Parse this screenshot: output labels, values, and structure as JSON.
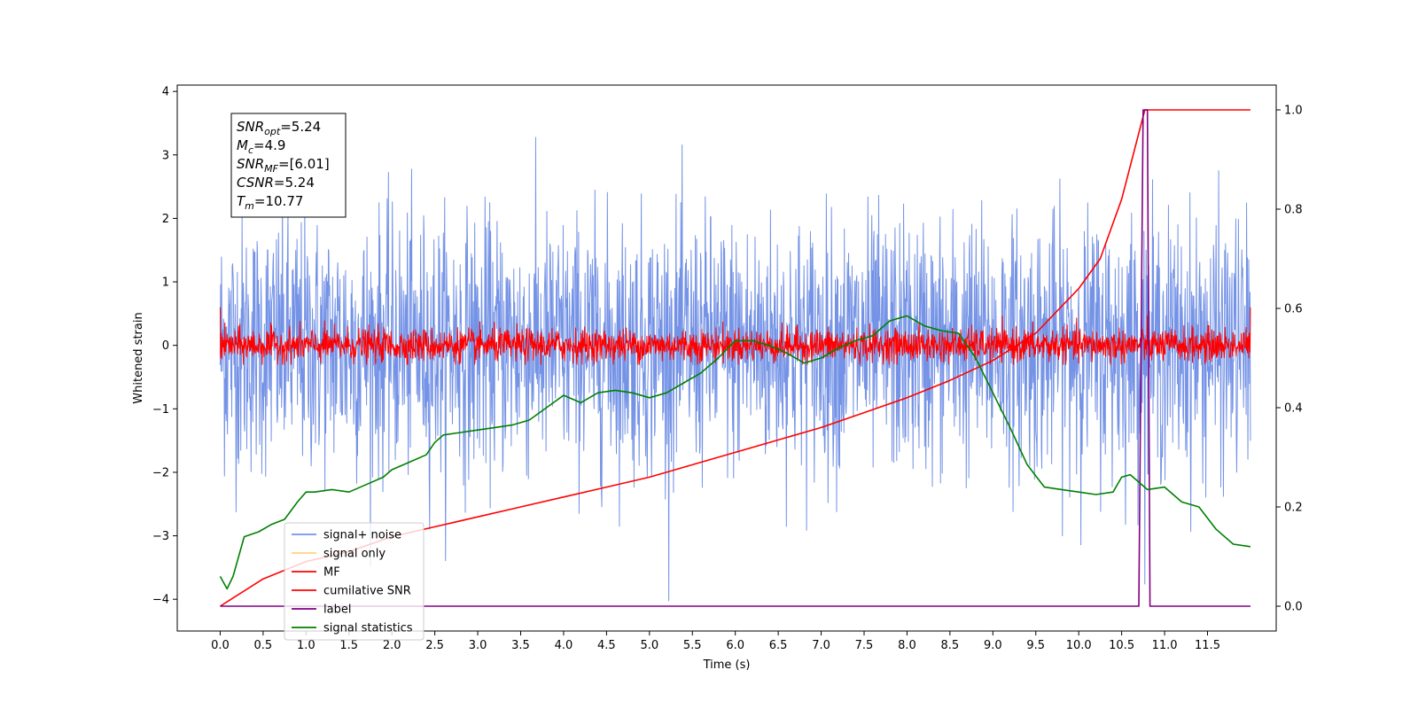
{
  "chart_data": {
    "type": "line",
    "xlabel": "Time (s)",
    "ylabel_left": "Whitened strain",
    "xlim": [
      -0.5,
      12.3
    ],
    "ylim_left": [
      -4.5,
      4.1
    ],
    "ylim_right": [
      -0.05,
      1.05
    ],
    "x_ticks": [
      "0.0",
      "0.5",
      "1.0",
      "1.5",
      "2.0",
      "2.5",
      "3.0",
      "3.5",
      "4.0",
      "4.5",
      "5.0",
      "5.5",
      "6.0",
      "6.5",
      "7.0",
      "7.5",
      "8.0",
      "8.5",
      "9.0",
      "9.5",
      "10.0",
      "10.5",
      "11.0",
      "11.5"
    ],
    "y_ticks_left": [
      "4",
      "3",
      "2",
      "1",
      "0",
      "−1",
      "−2",
      "−3",
      "−4"
    ],
    "y_ticks_right": [
      "1.0",
      "0.8",
      "0.6",
      "0.4",
      "0.2",
      "0.0"
    ],
    "legend": {
      "placement": "lower-left",
      "entries": [
        {
          "label": "signal+ noise",
          "color": "#7593e6"
        },
        {
          "label": "signal only",
          "color": "#ffd27f"
        },
        {
          "label": "MF",
          "color": "#ff0000"
        },
        {
          "label": "cumilative SNR",
          "color": "#ff0000"
        },
        {
          "label": "label",
          "color": "#800080"
        },
        {
          "label": "signal statistics",
          "color": "#008000"
        }
      ]
    },
    "stats_box": [
      {
        "base": "SNR",
        "sub": "opt",
        "value": "=5.24"
      },
      {
        "base": "M",
        "sub": "c",
        "value": "=4.9"
      },
      {
        "base": "SNR",
        "sub": "MF",
        "value": "=[6.01]"
      },
      {
        "base": "CSNR",
        "sub": "",
        "value": "=5.24"
      },
      {
        "base": "T",
        "sub": "m",
        "value": "=10.77"
      }
    ],
    "series": [
      {
        "name": "signal+ noise",
        "axis": "left",
        "color": "#7593e6",
        "kind": "noise",
        "x_range": [
          0.0,
          12.0
        ],
        "std": 1.0,
        "range_observed": [
          -4.15,
          3.7
        ]
      },
      {
        "name": "MF",
        "axis": "left",
        "color": "#ff0000",
        "kind": "noise",
        "x_range": [
          0.0,
          12.0
        ],
        "std": 0.13,
        "range_observed": [
          -0.3,
          0.6
        ],
        "edge_values": [
          1.0,
          1.0
        ]
      },
      {
        "name": "cumilative SNR",
        "axis": "right",
        "color": "#ff0000",
        "x": [
          0.0,
          0.5,
          1.0,
          1.5,
          2.0,
          2.5,
          3.0,
          3.5,
          4.0,
          4.5,
          5.0,
          5.5,
          6.0,
          6.5,
          7.0,
          7.5,
          8.0,
          8.5,
          9.0,
          9.5,
          10.0,
          10.25,
          10.5,
          10.77,
          11.0,
          11.5,
          12.0
        ],
        "y": [
          0.0,
          0.055,
          0.09,
          0.11,
          0.14,
          0.16,
          0.18,
          0.2,
          0.22,
          0.24,
          0.26,
          0.285,
          0.31,
          0.335,
          0.36,
          0.39,
          0.42,
          0.455,
          0.495,
          0.55,
          0.64,
          0.7,
          0.82,
          1.0,
          1.0,
          1.0,
          1.0
        ]
      },
      {
        "name": "label",
        "axis": "right",
        "color": "#800080",
        "x": [
          0.0,
          10.7,
          10.75,
          10.8,
          10.83,
          12.0
        ],
        "y": [
          0.0,
          0.0,
          1.0,
          1.0,
          0.0,
          0.0
        ]
      },
      {
        "name": "signal statistics",
        "axis": "right",
        "color": "#008000",
        "x": [
          0.0,
          0.08,
          0.15,
          0.28,
          0.45,
          0.6,
          0.75,
          0.9,
          1.0,
          1.1,
          1.3,
          1.5,
          1.7,
          1.9,
          2.0,
          2.2,
          2.4,
          2.5,
          2.6,
          2.8,
          3.0,
          3.2,
          3.4,
          3.6,
          3.8,
          4.0,
          4.2,
          4.4,
          4.6,
          4.8,
          5.0,
          5.2,
          5.4,
          5.6,
          5.8,
          6.0,
          6.2,
          6.4,
          6.6,
          6.8,
          7.0,
          7.2,
          7.4,
          7.6,
          7.8,
          8.0,
          8.2,
          8.4,
          8.6,
          8.8,
          9.0,
          9.2,
          9.4,
          9.6,
          9.8,
          10.0,
          10.2,
          10.4,
          10.5,
          10.6,
          10.8,
          11.0,
          11.2,
          11.4,
          11.6,
          11.8,
          12.0
        ],
        "y": [
          0.06,
          0.035,
          0.06,
          0.14,
          0.15,
          0.165,
          0.175,
          0.21,
          0.23,
          0.23,
          0.235,
          0.23,
          0.245,
          0.26,
          0.275,
          0.29,
          0.305,
          0.33,
          0.345,
          0.35,
          0.355,
          0.36,
          0.365,
          0.375,
          0.4,
          0.425,
          0.41,
          0.43,
          0.435,
          0.43,
          0.42,
          0.43,
          0.45,
          0.47,
          0.5,
          0.535,
          0.535,
          0.525,
          0.51,
          0.49,
          0.5,
          0.52,
          0.535,
          0.545,
          0.575,
          0.585,
          0.565,
          0.555,
          0.55,
          0.5,
          0.43,
          0.36,
          0.285,
          0.24,
          0.235,
          0.23,
          0.225,
          0.23,
          0.26,
          0.265,
          0.235,
          0.24,
          0.21,
          0.2,
          0.155,
          0.125,
          0.12
        ]
      }
    ]
  }
}
